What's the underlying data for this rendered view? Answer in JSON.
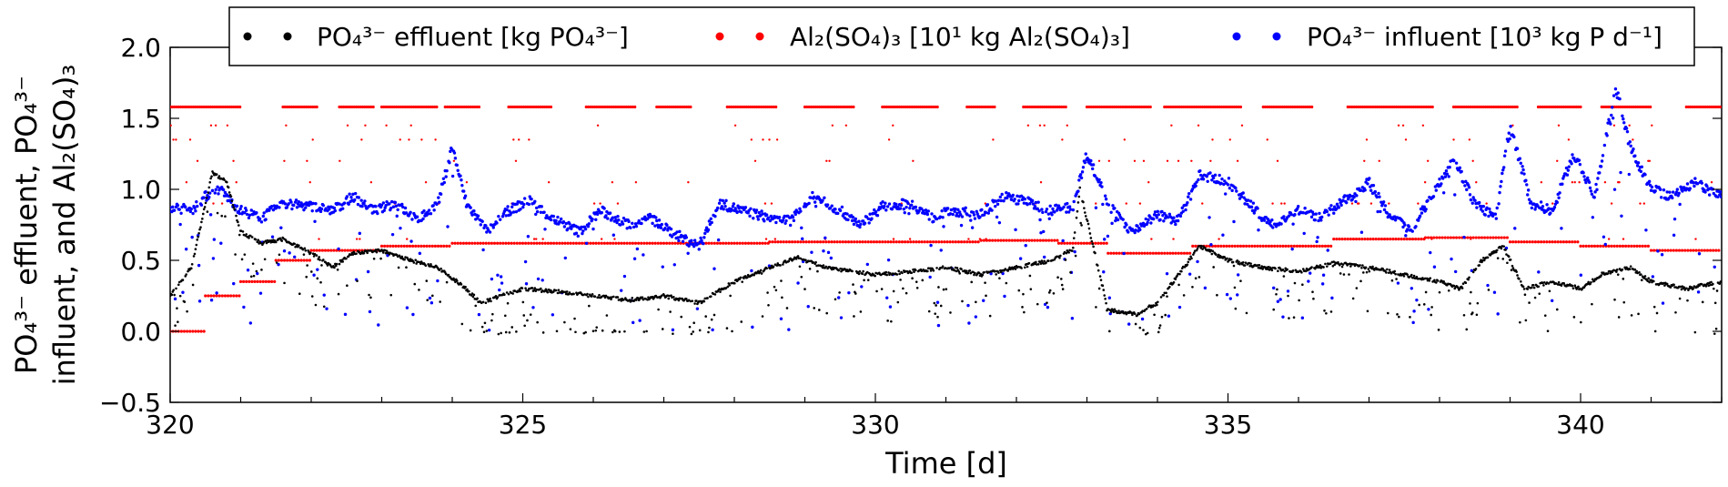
{
  "chart_data": {
    "type": "scatter",
    "title": "",
    "xlabel": "Time [d]",
    "ylabel_line1": "PO₄³⁻ effluent, PO₄³⁻",
    "ylabel_line2": "influent, and Al₂(SO₄)₃",
    "xlim": [
      320,
      342
    ],
    "ylim": [
      -0.5,
      2.0
    ],
    "x_ticks": [
      320,
      325,
      330,
      335,
      340
    ],
    "x_tick_labels": [
      "320",
      "325",
      "330",
      "335",
      "340"
    ],
    "y_ticks": [
      -0.5,
      0.0,
      0.5,
      1.0,
      1.5,
      2.0
    ],
    "y_tick_labels": [
      "−0.5",
      "0.0",
      "0.5",
      "1.0",
      "1.5",
      "2.0"
    ],
    "grid": false,
    "legend_position": "top",
    "series": [
      {
        "name": "PO₄³⁻ effluent [kg PO₄³⁻]",
        "color": "#000000",
        "x": [
          320.0,
          320.3,
          320.6,
          320.8,
          321.0,
          321.3,
          321.6,
          322.0,
          322.3,
          322.6,
          323.0,
          323.4,
          323.8,
          324.2,
          324.4,
          324.7,
          325.0,
          325.5,
          326.0,
          326.5,
          327.0,
          327.5,
          328.0,
          328.5,
          328.9,
          329.3,
          329.7,
          330.0,
          330.5,
          331.0,
          331.5,
          332.0,
          332.5,
          332.8,
          332.9,
          333.3,
          333.7,
          334.0,
          334.3,
          334.6,
          335.0,
          335.5,
          336.0,
          336.5,
          337.0,
          337.5,
          338.0,
          338.3,
          338.6,
          338.9,
          339.2,
          339.6,
          340.0,
          340.3,
          340.7,
          341.0,
          341.5,
          342.0
        ],
        "y": [
          0.25,
          0.45,
          1.12,
          1.05,
          0.7,
          0.62,
          0.65,
          0.55,
          0.45,
          0.55,
          0.57,
          0.5,
          0.45,
          0.3,
          0.2,
          0.25,
          0.3,
          0.28,
          0.25,
          0.22,
          0.25,
          0.2,
          0.35,
          0.45,
          0.52,
          0.45,
          0.42,
          0.4,
          0.42,
          0.45,
          0.4,
          0.45,
          0.5,
          0.58,
          1.0,
          0.15,
          0.12,
          0.2,
          0.4,
          0.6,
          0.5,
          0.45,
          0.42,
          0.48,
          0.45,
          0.4,
          0.35,
          0.3,
          0.5,
          0.6,
          0.3,
          0.35,
          0.3,
          0.4,
          0.45,
          0.35,
          0.3,
          0.35
        ]
      },
      {
        "name": "Al₂(SO₄)₃ [10¹ kg Al₂(SO₄)₃]",
        "color": "#ff0000",
        "steps_x": [
          [
            320.0,
            320.5
          ],
          [
            320.5,
            321.0
          ],
          [
            321.0,
            321.5
          ],
          [
            321.5,
            322.0
          ],
          [
            322.0,
            323.0
          ],
          [
            323.0,
            324.0
          ],
          [
            324.0,
            327.0
          ],
          [
            327.0,
            328.5
          ],
          [
            328.5,
            331.5
          ],
          [
            331.5,
            332.6
          ],
          [
            332.6,
            333.3
          ],
          [
            333.3,
            334.5
          ],
          [
            334.5,
            336.5
          ],
          [
            336.5,
            337.8
          ],
          [
            337.8,
            339.0
          ],
          [
            339.0,
            340.0
          ],
          [
            340.0,
            341.0
          ],
          [
            341.0,
            342.0
          ]
        ],
        "steps_y": [
          0.0,
          0.25,
          0.35,
          0.5,
          0.57,
          0.6,
          0.62,
          0.62,
          0.63,
          0.64,
          0.62,
          0.55,
          0.6,
          0.65,
          0.66,
          0.63,
          0.6,
          0.57
        ],
        "dosing_levels": [
          0.65,
          0.9,
          1.05,
          1.2,
          1.35,
          1.45,
          1.58
        ],
        "dosing_intervals": [
          [
            320.0,
            321.0
          ],
          [
            321.6,
            322.1
          ],
          [
            322.4,
            322.9
          ],
          [
            323.0,
            323.8
          ],
          [
            323.9,
            324.4
          ],
          [
            324.8,
            325.4
          ],
          [
            325.9,
            326.6
          ],
          [
            326.9,
            327.4
          ],
          [
            327.9,
            328.6
          ],
          [
            329.0,
            329.7
          ],
          [
            330.1,
            330.9
          ],
          [
            331.3,
            331.7
          ],
          [
            332.1,
            332.7
          ],
          [
            333.0,
            333.9
          ],
          [
            334.1,
            335.2
          ],
          [
            335.5,
            336.2
          ],
          [
            336.7,
            337.9
          ],
          [
            338.2,
            339.1
          ],
          [
            339.4,
            340.0
          ],
          [
            340.3,
            341.0
          ],
          [
            341.5,
            342.0
          ]
        ]
      },
      {
        "name": "PO₄³⁻ influent [10³ kg P d⁻¹]",
        "color": "#0000ff",
        "x": [
          320.0,
          320.3,
          320.5,
          320.7,
          321.0,
          321.3,
          321.6,
          322.0,
          322.3,
          322.6,
          322.9,
          323.2,
          323.5,
          323.8,
          324.0,
          324.2,
          324.5,
          324.8,
          325.1,
          325.4,
          325.8,
          326.1,
          326.5,
          326.8,
          327.1,
          327.5,
          327.8,
          328.1,
          328.5,
          328.8,
          329.1,
          329.5,
          329.8,
          330.1,
          330.5,
          330.8,
          331.1,
          331.5,
          331.8,
          332.1,
          332.5,
          332.8,
          333.0,
          333.3,
          333.6,
          334.0,
          334.3,
          334.6,
          335.0,
          335.3,
          335.6,
          336.0,
          336.3,
          336.6,
          337.0,
          337.3,
          337.6,
          338.0,
          338.2,
          338.5,
          338.8,
          339.0,
          339.3,
          339.6,
          339.9,
          340.2,
          340.5,
          340.7,
          341.0,
          341.3,
          341.6,
          342.0
        ],
        "y": [
          0.88,
          0.85,
          0.95,
          1.0,
          0.85,
          0.8,
          0.9,
          0.88,
          0.85,
          0.95,
          0.85,
          0.9,
          0.78,
          0.9,
          1.3,
          0.9,
          0.7,
          0.85,
          0.92,
          0.8,
          0.7,
          0.85,
          0.75,
          0.8,
          0.7,
          0.6,
          0.9,
          0.85,
          0.8,
          0.78,
          0.95,
          0.85,
          0.75,
          0.88,
          0.9,
          0.8,
          0.85,
          0.82,
          0.95,
          0.92,
          0.85,
          0.88,
          1.25,
          0.9,
          0.7,
          0.82,
          0.78,
          1.1,
          1.05,
          0.9,
          0.75,
          0.85,
          0.8,
          0.9,
          1.05,
          0.8,
          0.72,
          1.05,
          1.22,
          0.9,
          0.8,
          1.45,
          0.9,
          0.85,
          1.25,
          0.95,
          1.72,
          1.3,
          1.0,
          0.95,
          1.05,
          0.95
        ]
      }
    ]
  }
}
